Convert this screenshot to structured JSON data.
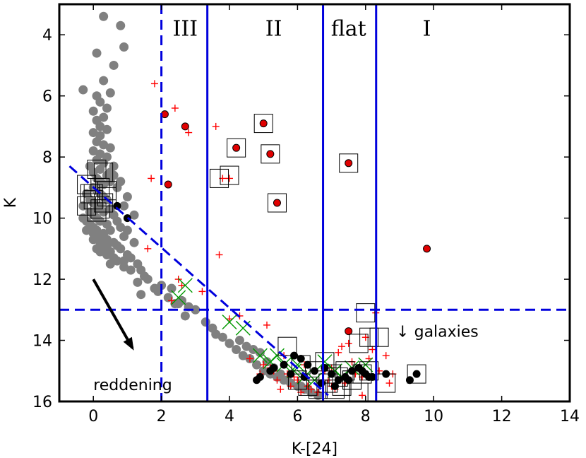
{
  "chart_data": {
    "type": "scatter",
    "xlabel": "K-[24]",
    "ylabel": "K",
    "xlim": [
      -1,
      14
    ],
    "ylim": [
      16,
      3
    ],
    "y_inverted": true,
    "x_ticks": [
      0,
      2,
      4,
      6,
      8,
      10,
      12,
      14
    ],
    "y_ticks": [
      4,
      6,
      8,
      10,
      12,
      14,
      16
    ],
    "class_boundaries": [
      {
        "x": 2.0,
        "style": "dashed"
      },
      {
        "x": 3.35,
        "style": "solid"
      },
      {
        "x": 6.75,
        "style": "solid"
      },
      {
        "x": 8.31,
        "style": "solid"
      }
    ],
    "class_labels": [
      {
        "text": "III",
        "x": 2.7,
        "y": 3.8
      },
      {
        "text": "II",
        "x": 5.3,
        "y": 3.8
      },
      {
        "text": "flat",
        "x": 7.5,
        "y": 3.8
      },
      {
        "text": "I",
        "x": 9.8,
        "y": 3.8
      }
    ],
    "horizontal_cut": {
      "y": 13.0,
      "style": "dashed"
    },
    "diagonal_cut": {
      "x": [
        -0.7,
        6.9
      ],
      "y": [
        8.3,
        15.8
      ],
      "style": "dashed"
    },
    "reddening_arrow": {
      "x": [
        0.0,
        1.15
      ],
      "y": [
        12.0,
        14.25
      ],
      "label": "reddening",
      "label_pos": [
        0.0,
        15.45
      ]
    },
    "galaxies_note": {
      "text": "↓ galaxies",
      "x": 8.9,
      "y": 13.7
    },
    "series": [
      {
        "name": "field stars",
        "marker": "circle",
        "color": "#808080",
        "x": [
          0.3,
          0.8,
          0.9,
          0.6,
          0.1,
          0.3,
          -0.3,
          0.1,
          0.5,
          0.2,
          0.4,
          0.0,
          0.3,
          0.1,
          0.2,
          0.4,
          0.0,
          0.2,
          0.1,
          0.3,
          0.5,
          0.0,
          0.2,
          0.4,
          0.1,
          0.3,
          -0.1,
          0.2,
          0.0,
          0.4,
          0.1,
          0.2,
          0.3,
          0.6,
          0.5,
          0.0,
          0.1,
          0.2,
          0.3,
          0.4,
          -0.2,
          -0.1,
          0.0,
          0.2,
          0.1,
          0.3,
          0.5,
          0.6,
          0.0,
          -0.3,
          -0.1,
          0.1,
          0.2,
          0.4,
          0.7,
          0.8,
          0.5,
          0.3,
          0.0,
          -0.2,
          -0.3,
          -0.1,
          0.1,
          0.2,
          0.4,
          0.6,
          0.9,
          0.7,
          0.4,
          0.2,
          0.0,
          -0.2,
          0.1,
          0.3,
          0.5,
          0.8,
          1.0,
          1.1,
          0.9,
          0.6,
          0.4,
          0.2,
          0.0,
          -0.1,
          0.3,
          0.5,
          0.7,
          0.9,
          1.0,
          1.2,
          1.3,
          1.1,
          0.9,
          0.7,
          0.5,
          0.6,
          0.8,
          1.0,
          1.2,
          1.4,
          1.5,
          1.3,
          1.6,
          1.8,
          1.4,
          2.0,
          2.2,
          2.4,
          2.6,
          1.9,
          2.3,
          2.8,
          3.0,
          2.7,
          2.5,
          3.3,
          3.5,
          3.6,
          3.8,
          4.0,
          4.2,
          4.4,
          4.6,
          4.8,
          5.0,
          5.2,
          5.4,
          5.6,
          5.8,
          6.0,
          6.2,
          6.4,
          4.5,
          4.9,
          5.1,
          5.3,
          5.5,
          5.7,
          6.1,
          6.3,
          6.6,
          4.3,
          4.7
        ],
        "y": [
          3.4,
          3.7,
          4.4,
          5.0,
          4.6,
          5.5,
          5.8,
          6.0,
          5.9,
          6.2,
          6.4,
          6.5,
          6.7,
          6.8,
          7.0,
          7.1,
          7.2,
          7.3,
          7.5,
          7.6,
          7.7,
          7.8,
          7.9,
          8.0,
          8.1,
          8.2,
          8.3,
          8.4,
          8.5,
          8.6,
          8.7,
          8.8,
          8.9,
          8.6,
          8.8,
          9.0,
          9.1,
          9.2,
          9.3,
          9.4,
          9.2,
          9.4,
          9.5,
          9.6,
          9.7,
          9.8,
          9.7,
          9.9,
          9.9,
          9.6,
          9.8,
          10.0,
          10.1,
          10.2,
          10.1,
          10.3,
          10.4,
          10.5,
          10.3,
          10.1,
          10.0,
          10.2,
          10.4,
          10.6,
          10.7,
          10.8,
          10.6,
          10.9,
          10.9,
          10.8,
          10.5,
          10.4,
          11.0,
          11.0,
          11.1,
          11.0,
          11.2,
          11.3,
          11.4,
          11.3,
          11.2,
          11.1,
          10.7,
          10.3,
          10.6,
          8.5,
          9.0,
          9.6,
          10.4,
          10.8,
          11.5,
          11.7,
          11.6,
          11.4,
          11.5,
          8.3,
          8.8,
          9.3,
          9.9,
          11.7,
          11.9,
          12.1,
          12.0,
          12.3,
          12.5,
          12.2,
          12.6,
          12.8,
          12.7,
          12.4,
          12.3,
          12.9,
          13.0,
          13.2,
          12.8,
          13.4,
          13.6,
          13.8,
          13.9,
          14.1,
          14.3,
          14.5,
          14.6,
          14.8,
          15.0,
          15.1,
          15.2,
          15.3,
          15.4,
          15.5,
          15.6,
          15.7,
          14.2,
          14.4,
          14.7,
          14.9,
          15.1,
          15.3,
          15.5,
          15.6,
          15.8,
          14.0,
          14.3
        ]
      },
      {
        "name": "red crosses",
        "marker": "plus",
        "color": "#ff0000",
        "x": [
          1.8,
          1.6,
          2.4,
          2.8,
          1.7,
          3.6,
          3.8,
          4.0,
          3.7,
          2.5,
          2.6,
          3.2,
          2.3,
          4.0,
          4.3,
          5.1,
          5.6,
          4.6,
          5.0,
          5.3,
          5.7,
          6.0,
          6.3,
          6.8,
          7.0,
          7.3,
          7.6,
          7.9,
          8.0,
          8.2,
          8.6,
          8.7,
          5.5,
          5.9,
          6.2,
          6.5,
          6.9,
          7.1,
          7.4,
          7.7,
          8.1,
          4.9,
          5.4,
          6.1,
          6.4,
          7.2,
          7.5,
          7.8,
          8.4,
          8.8,
          5.2,
          5.8,
          6.6,
          7.0,
          7.9,
          8.3
        ],
        "y": [
          5.6,
          11.0,
          6.4,
          7.2,
          8.7,
          7.0,
          8.7,
          8.7,
          11.2,
          12.0,
          12.2,
          12.4,
          12.7,
          13.3,
          13.2,
          13.5,
          14.5,
          14.6,
          14.8,
          15.0,
          15.1,
          15.3,
          15.5,
          15.0,
          14.9,
          14.2,
          14.7,
          15.2,
          13.9,
          14.3,
          14.5,
          15.4,
          15.6,
          15.2,
          14.8,
          15.0,
          15.3,
          15.6,
          15.4,
          15.1,
          14.6,
          15.1,
          15.3,
          15.7,
          15.6,
          14.4,
          14.1,
          14.9,
          15.0,
          15.1,
          14.9,
          15.5,
          15.7,
          15.5,
          15.8,
          13.1
        ]
      },
      {
        "name": "green X",
        "marker": "x",
        "color": "#009900",
        "x": [
          2.5,
          2.7,
          4.0,
          4.4,
          4.9,
          5.2,
          5.6,
          5.9,
          6.2,
          6.5,
          6.8,
          7.1,
          7.3,
          7.6,
          8.0,
          5.4,
          6.0
        ],
        "y": [
          12.6,
          12.2,
          13.4,
          13.6,
          14.5,
          14.7,
          14.8,
          15.0,
          15.2,
          15.3,
          14.7,
          15.0,
          15.2,
          14.9,
          14.8,
          14.5,
          14.8
        ]
      },
      {
        "name": "black dots",
        "marker": "filled-circle",
        "color": "#000000",
        "x": [
          0.7,
          1.0,
          4.8,
          5.2,
          5.6,
          5.9,
          6.1,
          6.3,
          6.5,
          6.8,
          7.0,
          7.2,
          7.4,
          7.6,
          7.8,
          8.0,
          8.2,
          8.6,
          9.3,
          4.9,
          5.3,
          5.8,
          6.2,
          6.7,
          7.1,
          7.5,
          7.9,
          8.1
        ],
        "y": [
          9.6,
          10.0,
          15.3,
          15.0,
          14.8,
          14.5,
          14.6,
          14.8,
          15.0,
          14.9,
          15.1,
          15.3,
          15.2,
          15.0,
          14.9,
          15.1,
          15.2,
          15.1,
          15.3,
          15.2,
          14.9,
          15.1,
          15.2,
          15.4,
          15.5,
          15.3,
          15.0,
          15.2
        ]
      },
      {
        "name": "red dots",
        "marker": "filled-circle",
        "color": "#e00000",
        "x": [
          2.1,
          2.7,
          2.2,
          4.2,
          5.0,
          5.2,
          5.4,
          7.5,
          9.8,
          7.5
        ],
        "y": [
          6.6,
          7.0,
          8.9,
          7.7,
          6.9,
          7.9,
          9.5,
          8.2,
          11.0,
          13.7
        ]
      },
      {
        "name": "boxed sources",
        "marker": "open-square",
        "color": "#000000",
        "x": [
          5.0,
          4.2,
          5.2,
          5.4,
          7.5,
          3.7,
          4.0,
          0.1,
          0.3,
          -0.2,
          -0.1,
          0.2,
          0.4,
          0.0,
          0.3,
          -0.2,
          0.1,
          0.4,
          0.0,
          0.2,
          8.0,
          8.1,
          7.8,
          8.4,
          9.5,
          5.7,
          6.1,
          6.5,
          6.8,
          7.0,
          7.2,
          7.4,
          7.6,
          7.9,
          8.1,
          8.6,
          6.0,
          6.3,
          6.6,
          6.9,
          7.1,
          7.3,
          7.6,
          7.8
        ],
        "y": [
          6.9,
          7.7,
          7.9,
          9.5,
          8.2,
          8.7,
          8.6,
          8.4,
          8.5,
          8.9,
          9.2,
          9.0,
          9.1,
          9.4,
          9.5,
          9.6,
          9.8,
          9.3,
          9.2,
          9.7,
          13.1,
          13.9,
          14.1,
          13.9,
          15.1,
          14.2,
          14.8,
          15.0,
          14.7,
          15.1,
          15.2,
          15.0,
          15.3,
          15.1,
          15.0,
          15.4,
          15.3,
          15.5,
          15.6,
          15.4,
          15.6,
          15.5,
          15.3,
          15.7
        ]
      },
      {
        "name": "centered dots in boxes",
        "marker": "filled-circle",
        "color": "#000000",
        "x": [
          9.5
        ],
        "y": [
          15.1
        ]
      }
    ]
  }
}
